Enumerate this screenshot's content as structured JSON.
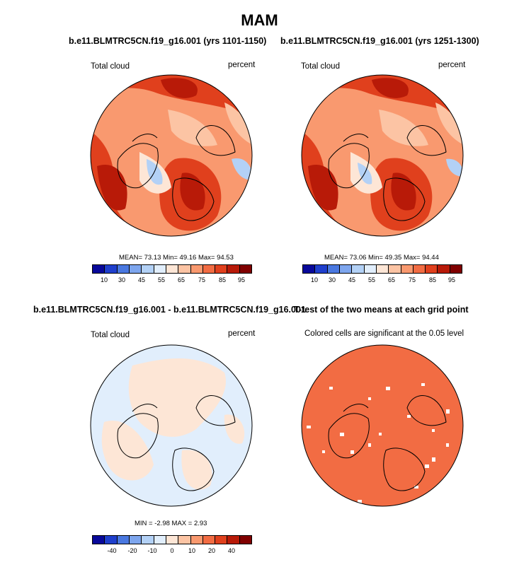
{
  "main_title": "MAM",
  "panels": [
    {
      "title": "b.e11.BLMTRC5CN.f19_g16.001 (yrs 1101-1150)",
      "left_label": "Total cloud",
      "right_label": "percent",
      "stats": "MEAN=  73.13  Min=  49.16  Max=  94.53"
    },
    {
      "title": "b.e11.BLMTRC5CN.f19_g16.001 (yrs 1251-1300)",
      "left_label": "Total cloud",
      "right_label": "percent",
      "stats": "MEAN=  73.06  Min=  49.35  Max=  94.44"
    },
    {
      "title": "b.e11.BLMTRC5CN.f19_g16.001 - b.e11.BLMTRC5CN.f19_g16.001",
      "left_label": "Total cloud",
      "right_label": "percent",
      "stats": "MIN =  -2.98 MAX =   2.93"
    },
    {
      "title": "T-test of the two means at each grid point",
      "subtitle": "Colored cells are significant at the 0.05 level"
    }
  ],
  "colorbar_abs": {
    "colors": [
      "#08089a",
      "#1f3fcc",
      "#4a78e0",
      "#7ea6ee",
      "#b3d1f6",
      "#e1eefc",
      "#fde6d6",
      "#fcc4a4",
      "#f9996f",
      "#f26c43",
      "#e0401d",
      "#b81a08",
      "#800000"
    ],
    "labels": [
      "10",
      "30",
      "45",
      "55",
      "65",
      "75",
      "85",
      "95"
    ]
  },
  "colorbar_diff": {
    "colors": [
      "#08089a",
      "#1f3fcc",
      "#4a78e0",
      "#7ea6ee",
      "#b3d1f6",
      "#e1eefc",
      "#fde6d6",
      "#fcc4a4",
      "#f9996f",
      "#f26c43",
      "#e0401d",
      "#b81a08",
      "#800000"
    ],
    "labels": [
      "-40",
      "-20",
      "-10",
      "0",
      "10",
      "20",
      "40"
    ]
  }
}
